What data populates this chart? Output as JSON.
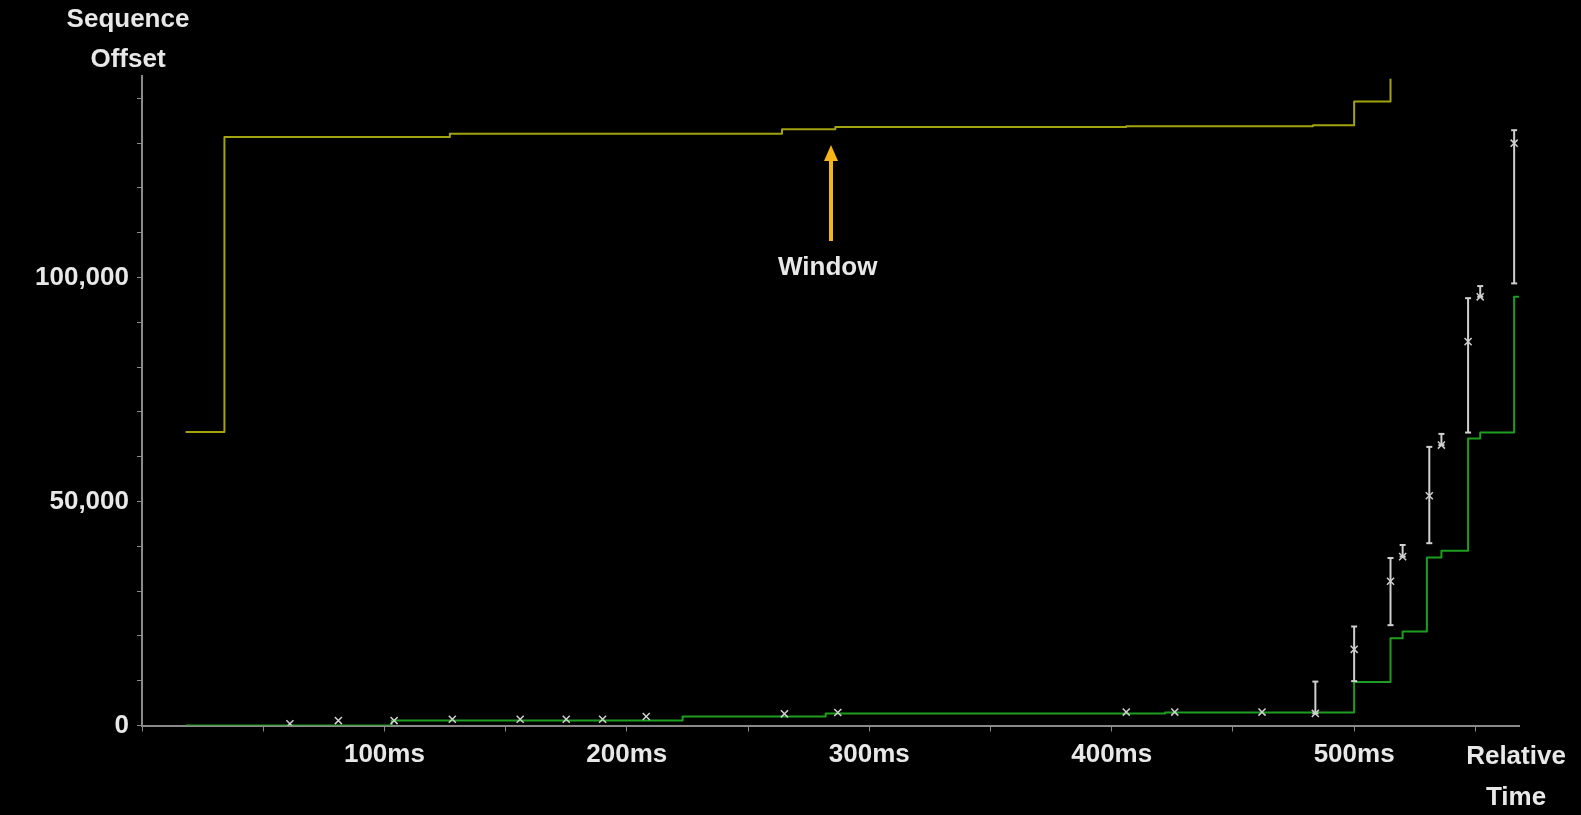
{
  "chart_data": {
    "type": "step",
    "xlabel": "Relative Time",
    "ylabel": "Sequence Offset",
    "xlim": [
      0,
      568
    ],
    "ylim": [
      0,
      145000
    ],
    "xticks": [
      {
        "value": 0,
        "label": null
      },
      {
        "value": 50,
        "label": null
      },
      {
        "value": 100,
        "label": "100ms"
      },
      {
        "value": 150,
        "label": null
      },
      {
        "value": 200,
        "label": "200ms"
      },
      {
        "value": 250,
        "label": null
      },
      {
        "value": 300,
        "label": "300ms"
      },
      {
        "value": 350,
        "label": null
      },
      {
        "value": 400,
        "label": "400ms"
      },
      {
        "value": 450,
        "label": null
      },
      {
        "value": 500,
        "label": "500ms"
      },
      {
        "value": 550,
        "label": null
      }
    ],
    "yticks": [
      0,
      {
        "value": 10000,
        "label": null
      },
      {
        "value": 20000,
        "label": null
      },
      {
        "value": 30000,
        "label": null
      },
      {
        "value": 40000,
        "label": null
      },
      {
        "value": 50000,
        "label": "50,000"
      },
      {
        "value": 60000,
        "label": null
      },
      {
        "value": 70000,
        "label": null
      },
      {
        "value": 80000,
        "label": null
      },
      {
        "value": 90000,
        "label": null
      },
      {
        "value": 100000,
        "label": "100,000"
      },
      {
        "value": 110000,
        "label": null
      },
      {
        "value": 120000,
        "label": null
      },
      {
        "value": 130000,
        "label": null
      },
      {
        "value": 140000,
        "label": null
      }
    ],
    "grid": false,
    "legend": false,
    "annotations": [
      "Window"
    ],
    "series": [
      {
        "color": "#a3a30f",
        "x": [
          18,
          34,
          127,
          264,
          286,
          406,
          483,
          500,
          515
        ],
        "values": [
          65500,
          131400,
          132100,
          133100,
          133600,
          133800,
          134000,
          139300,
          144400
        ]
      },
      {
        "color": "#1e9e1e",
        "x": [
          18,
          103,
          223,
          282,
          422,
          500,
          515,
          520,
          530,
          536,
          547,
          552,
          566,
          568
        ],
        "values": [
          0,
          1100,
          2000,
          2700,
          2900,
          9700,
          19500,
          21000,
          37500,
          39000,
          64100,
          65400,
          95700,
          95700
        ]
      },
      {
        "type": "scatter",
        "color": "#d0d0d0",
        "marker": "cross",
        "x": [
          61,
          81,
          104,
          128,
          156,
          175,
          190,
          208,
          265,
          287,
          406,
          426,
          462,
          484,
          500,
          515,
          520,
          531,
          536,
          547,
          552,
          566
        ],
        "values": [
          400,
          1100,
          1100,
          1400,
          1400,
          1400,
          1400,
          2000,
          2600,
          2900,
          3000,
          3000,
          3000,
          2700,
          17000,
          32200,
          37700,
          51300,
          62600,
          85700,
          95700,
          130000
        ],
        "errors": [
          null,
          null,
          null,
          null,
          null,
          null,
          null,
          null,
          null,
          null,
          null,
          null,
          null,
          [
            2700,
            9800
          ],
          [
            9900,
            22100
          ],
          [
            22400,
            37400
          ],
          [
            37700,
            40300
          ],
          [
            40700,
            62200
          ],
          [
            62600,
            65100
          ],
          [
            65400,
            95400
          ],
          [
            95700,
            98100
          ],
          [
            98700,
            132900
          ]
        ]
      }
    ]
  }
}
